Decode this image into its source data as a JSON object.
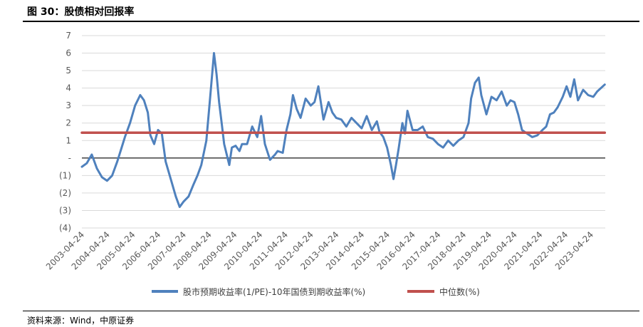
{
  "figure": {
    "title": "图 30：股债相对回报率",
    "source": "资料来源：Wind，中原证券"
  },
  "chart_data": {
    "type": "line",
    "title": "",
    "xlabel": "",
    "ylabel": "",
    "ylim": [
      -4,
      7
    ],
    "yticks": [
      -4,
      -3,
      -2,
      -1,
      0,
      1,
      2,
      3,
      4,
      5,
      6,
      7
    ],
    "ytick_labels": [
      "(4)",
      "(3)",
      "(2)",
      "(1)",
      "-",
      "1",
      "2",
      "3",
      "4",
      "5",
      "6",
      "7"
    ],
    "xtick_labels": [
      "2003-04-24",
      "2004-04-24",
      "2005-04-24",
      "2006-04-24",
      "2007-04-24",
      "2008-04-24",
      "2009-04-24",
      "2010-04-24",
      "2011-04-24",
      "2012-04-24",
      "2013-04-24",
      "2014-04-24",
      "2015-04-24",
      "2016-04-24",
      "2017-04-24",
      "2018-04-24",
      "2019-04-24",
      "2020-04-24",
      "2021-04-24",
      "2022-04-24",
      "2023-04-24"
    ],
    "grid": "horizontal",
    "legend_position": "bottom",
    "series": [
      {
        "name": "股市预期收益率(1/PE)-10年国债到期收益率(%)",
        "color": "#4F81BD",
        "x": [
          2003.31,
          2003.5,
          2003.7,
          2003.9,
          2004.1,
          2004.3,
          2004.5,
          2004.7,
          2004.85,
          2005.0,
          2005.2,
          2005.4,
          2005.6,
          2005.75,
          2005.9,
          2006.0,
          2006.15,
          2006.3,
          2006.45,
          2006.6,
          2006.8,
          2007.0,
          2007.15,
          2007.3,
          2007.5,
          2007.7,
          2007.85,
          2008.0,
          2008.2,
          2008.35,
          2008.5,
          2008.6,
          2008.7,
          2008.8,
          2008.9,
          2009.0,
          2009.1,
          2009.2,
          2009.35,
          2009.5,
          2009.6,
          2009.8,
          2010.0,
          2010.2,
          2010.35,
          2010.5,
          2010.7,
          2010.9,
          2011.0,
          2011.2,
          2011.35,
          2011.5,
          2011.6,
          2011.75,
          2011.9,
          2012.1,
          2012.3,
          2012.45,
          2012.6,
          2012.8,
          2013.0,
          2013.15,
          2013.3,
          2013.5,
          2013.7,
          2013.9,
          2014.1,
          2014.3,
          2014.5,
          2014.7,
          2014.9,
          2015.0,
          2015.15,
          2015.3,
          2015.45,
          2015.55,
          2015.65,
          2015.75,
          2015.9,
          2016.0,
          2016.1,
          2016.3,
          2016.5,
          2016.7,
          2016.9,
          2017.1,
          2017.3,
          2017.5,
          2017.7,
          2017.9,
          2018.1,
          2018.3,
          2018.5,
          2018.6,
          2018.75,
          2018.9,
          2019.0,
          2019.2,
          2019.4,
          2019.6,
          2019.8,
          2020.0,
          2020.15,
          2020.3,
          2020.45,
          2020.6,
          2020.8,
          2021.0,
          2021.2,
          2021.4,
          2021.55,
          2021.7,
          2021.85,
          2022.0,
          2022.2,
          2022.35,
          2022.5,
          2022.65,
          2022.8,
          2023.0,
          2023.2,
          2023.4,
          2023.55,
          2023.7,
          2023.85
        ],
        "values": [
          -0.5,
          -0.3,
          0.2,
          -0.6,
          -1.1,
          -1.3,
          -1.0,
          -0.2,
          0.5,
          1.2,
          2.0,
          3.0,
          3.6,
          3.3,
          2.6,
          1.3,
          0.8,
          1.6,
          1.4,
          -0.2,
          -1.2,
          -2.2,
          -2.8,
          -2.5,
          -2.2,
          -1.5,
          -1.0,
          -0.4,
          1.0,
          3.5,
          6.0,
          4.8,
          3.2,
          2.0,
          0.8,
          0.2,
          -0.4,
          0.6,
          0.7,
          0.4,
          0.8,
          0.8,
          1.8,
          1.2,
          2.4,
          0.8,
          -0.1,
          0.2,
          0.4,
          0.3,
          1.6,
          2.5,
          3.6,
          2.8,
          2.3,
          3.4,
          3.0,
          3.2,
          4.1,
          2.2,
          3.2,
          2.6,
          2.3,
          2.2,
          1.8,
          2.3,
          2.0,
          1.7,
          2.4,
          1.6,
          2.1,
          1.5,
          1.2,
          0.6,
          -0.4,
          -1.2,
          -0.4,
          0.5,
          2.0,
          1.4,
          2.7,
          1.6,
          1.6,
          1.8,
          1.2,
          1.1,
          0.8,
          0.6,
          1.0,
          0.7,
          1.0,
          1.2,
          2.0,
          3.4,
          4.3,
          4.6,
          3.6,
          2.5,
          3.5,
          3.3,
          3.8,
          3.0,
          3.3,
          3.2,
          2.5,
          1.6,
          1.4,
          1.2,
          1.3,
          1.6,
          1.8,
          2.5,
          2.6,
          2.9,
          3.5,
          4.1,
          3.5,
          4.5,
          3.3,
          3.9,
          3.6,
          3.5,
          3.8,
          4.0,
          4.2
        ]
      },
      {
        "name": "中位数(%)",
        "color": "#C0504D",
        "x": [
          2003.31,
          2023.85
        ],
        "values": [
          1.45,
          1.45
        ]
      }
    ]
  }
}
